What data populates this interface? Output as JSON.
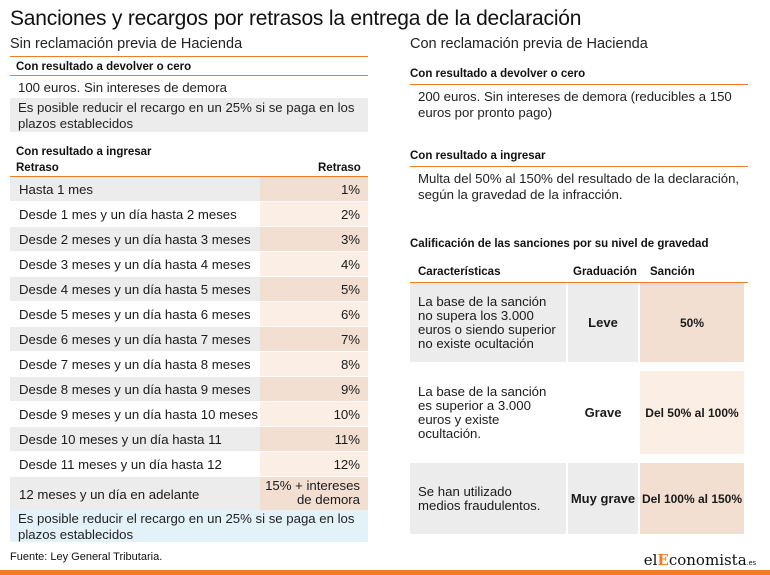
{
  "title": "Sanciones y recargos por retrasos la entrega de la declaración",
  "left": {
    "subtitle": "Sin reclamación previa de Hacienda",
    "devolver": {
      "heading": "Con resultado a devolver o cero",
      "line1": "100 euros. Sin intereses de demora",
      "note": "Es posible reducir el recargo en un 25% si se paga en los plazos establecidos"
    },
    "ingresar": {
      "heading": "Con resultado a ingresar",
      "col_retraso": "Retraso",
      "col_recargo": "Retraso",
      "rows": [
        {
          "period": "Hasta 1 mes",
          "value": "1%"
        },
        {
          "period": "Desde 1 mes y un día hasta 2 meses",
          "value": "2%"
        },
        {
          "period": "Desde 2 meses y un día hasta 3 meses",
          "value": "3%"
        },
        {
          "period": "Desde 3 meses y un día hasta 4 meses",
          "value": "4%"
        },
        {
          "period": "Desde 4 meses y un día hasta 5 meses",
          "value": "5%"
        },
        {
          "period": "Desde 5 meses y un día hasta 6 meses",
          "value": "6%"
        },
        {
          "period": "Desde 6 meses y un día hasta 7 meses",
          "value": "7%"
        },
        {
          "period": "Desde 7 meses y un día hasta 8 meses",
          "value": "8%"
        },
        {
          "period": "Desde 8 meses y un día hasta 9 meses",
          "value": "9%"
        },
        {
          "period": "Desde 9 meses y un día hasta 10 meses",
          "value": "10%"
        },
        {
          "period": "Desde 10 meses y un día hasta 11 meses",
          "value": "11%"
        },
        {
          "period": "Desde 11 meses y un día hasta 12 meses",
          "value": "12%"
        },
        {
          "period": "12 meses y un día en adelante",
          "value_line1": "15% + intereses",
          "value_line2": "de demora"
        }
      ],
      "note": "Es posible reducir el recargo en un 25% si se paga en los plazos establecidos"
    }
  },
  "right": {
    "subtitle": "Con reclamación previa de Hacienda",
    "devolver": {
      "heading": "Con resultado a devolver o cero",
      "text": "200 euros. Sin intereses de demora (reducibles a 150 euros por pronto pago)"
    },
    "ingresar": {
      "heading": "Con resultado a ingresar",
      "text": "Multa del 50% al 150% del resultado de la declaración, según la gravedad de la infracción."
    },
    "calificacion": {
      "heading": "Calificación de las sanciones por su nivel de gravedad",
      "col_caracteristicas": "Características",
      "col_graduacion": "Graduación",
      "col_sancion": "Sanción",
      "rows": [
        {
          "caracteristicas": "La base de la sanción no supera  los 3.000 euros o siendo superior no existe ocultación",
          "graduacion": "Leve",
          "sancion": "50%"
        },
        {
          "caracteristicas": "La base de la sanción es superior a 3.000 euros y existe ocultación.",
          "graduacion": "Grave",
          "sancion": "Del 50% al 100%"
        },
        {
          "caracteristicas": "Se han utilizado medios fraudulentos.",
          "graduacion": "Muy grave",
          "sancion": "Del 100% al 150%"
        }
      ]
    }
  },
  "source": "Fuente: Ley General Tributaria.",
  "logo": {
    "part1": "el",
    "part2": "E",
    "part3": "conomista",
    "suffix": ".es"
  },
  "colors": {
    "accent": "#f07c2a",
    "gray_cell": "#ececec",
    "peach_cell": "#f2dfd2",
    "light_peach": "#fbeee4",
    "blue_note": "#e3f1f8"
  }
}
